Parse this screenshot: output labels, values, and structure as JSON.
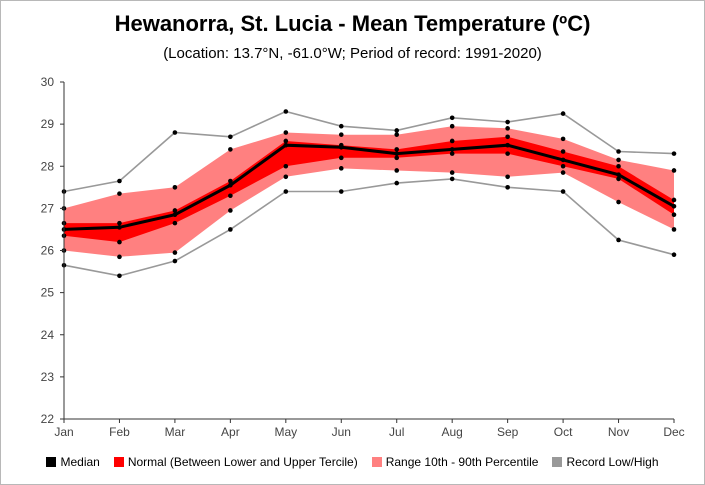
{
  "chart_data": {
    "type": "line",
    "title": "Hewanorra, St. Lucia - Mean Temperature (ºC)",
    "subtitle": "(Location: 13.7°N, -61.0°W; Period of record: 1991-2020)",
    "categories": [
      "Jan",
      "Feb",
      "Mar",
      "Apr",
      "May",
      "Jun",
      "Jul",
      "Aug",
      "Sep",
      "Oct",
      "Nov",
      "Dec"
    ],
    "ylim": [
      22,
      30
    ],
    "yticks": [
      22,
      23,
      24,
      25,
      26,
      27,
      28,
      29,
      30
    ],
    "grid": false,
    "legend_position": "bottom",
    "series": [
      {
        "name": "Median",
        "role": "median",
        "color": "#000000",
        "values": [
          26.5,
          26.55,
          26.85,
          27.55,
          28.5,
          28.45,
          28.3,
          28.4,
          28.5,
          28.15,
          27.8,
          27.05
        ]
      },
      {
        "name": "Normal (Between Lower and Upper Tercile)",
        "role": "tercile",
        "color": "#ff0000",
        "lower": [
          26.35,
          26.2,
          26.65,
          27.3,
          28.0,
          28.2,
          28.2,
          28.3,
          28.3,
          28.0,
          27.7,
          26.85
        ],
        "upper": [
          26.65,
          26.65,
          26.95,
          27.65,
          28.6,
          28.5,
          28.4,
          28.6,
          28.7,
          28.35,
          28.0,
          27.2
        ]
      },
      {
        "name": "Range 10th - 90th Percentile",
        "role": "percentile",
        "color": "#ff8080",
        "lower": [
          26.0,
          25.85,
          25.95,
          26.95,
          27.75,
          27.95,
          27.9,
          27.85,
          27.75,
          27.85,
          27.15,
          26.5
        ],
        "upper": [
          27.0,
          27.35,
          27.5,
          28.4,
          28.8,
          28.75,
          28.75,
          28.95,
          28.9,
          28.65,
          28.15,
          27.9
        ]
      },
      {
        "name": "Record Low/High",
        "role": "record",
        "color": "#999999",
        "lower": [
          25.65,
          25.4,
          25.75,
          26.5,
          27.4,
          27.4,
          27.6,
          27.7,
          27.5,
          27.4,
          26.25,
          25.9
        ],
        "upper": [
          27.4,
          27.65,
          28.8,
          28.7,
          29.3,
          28.95,
          28.85,
          29.15,
          29.05,
          29.25,
          28.35,
          28.3
        ]
      }
    ]
  }
}
